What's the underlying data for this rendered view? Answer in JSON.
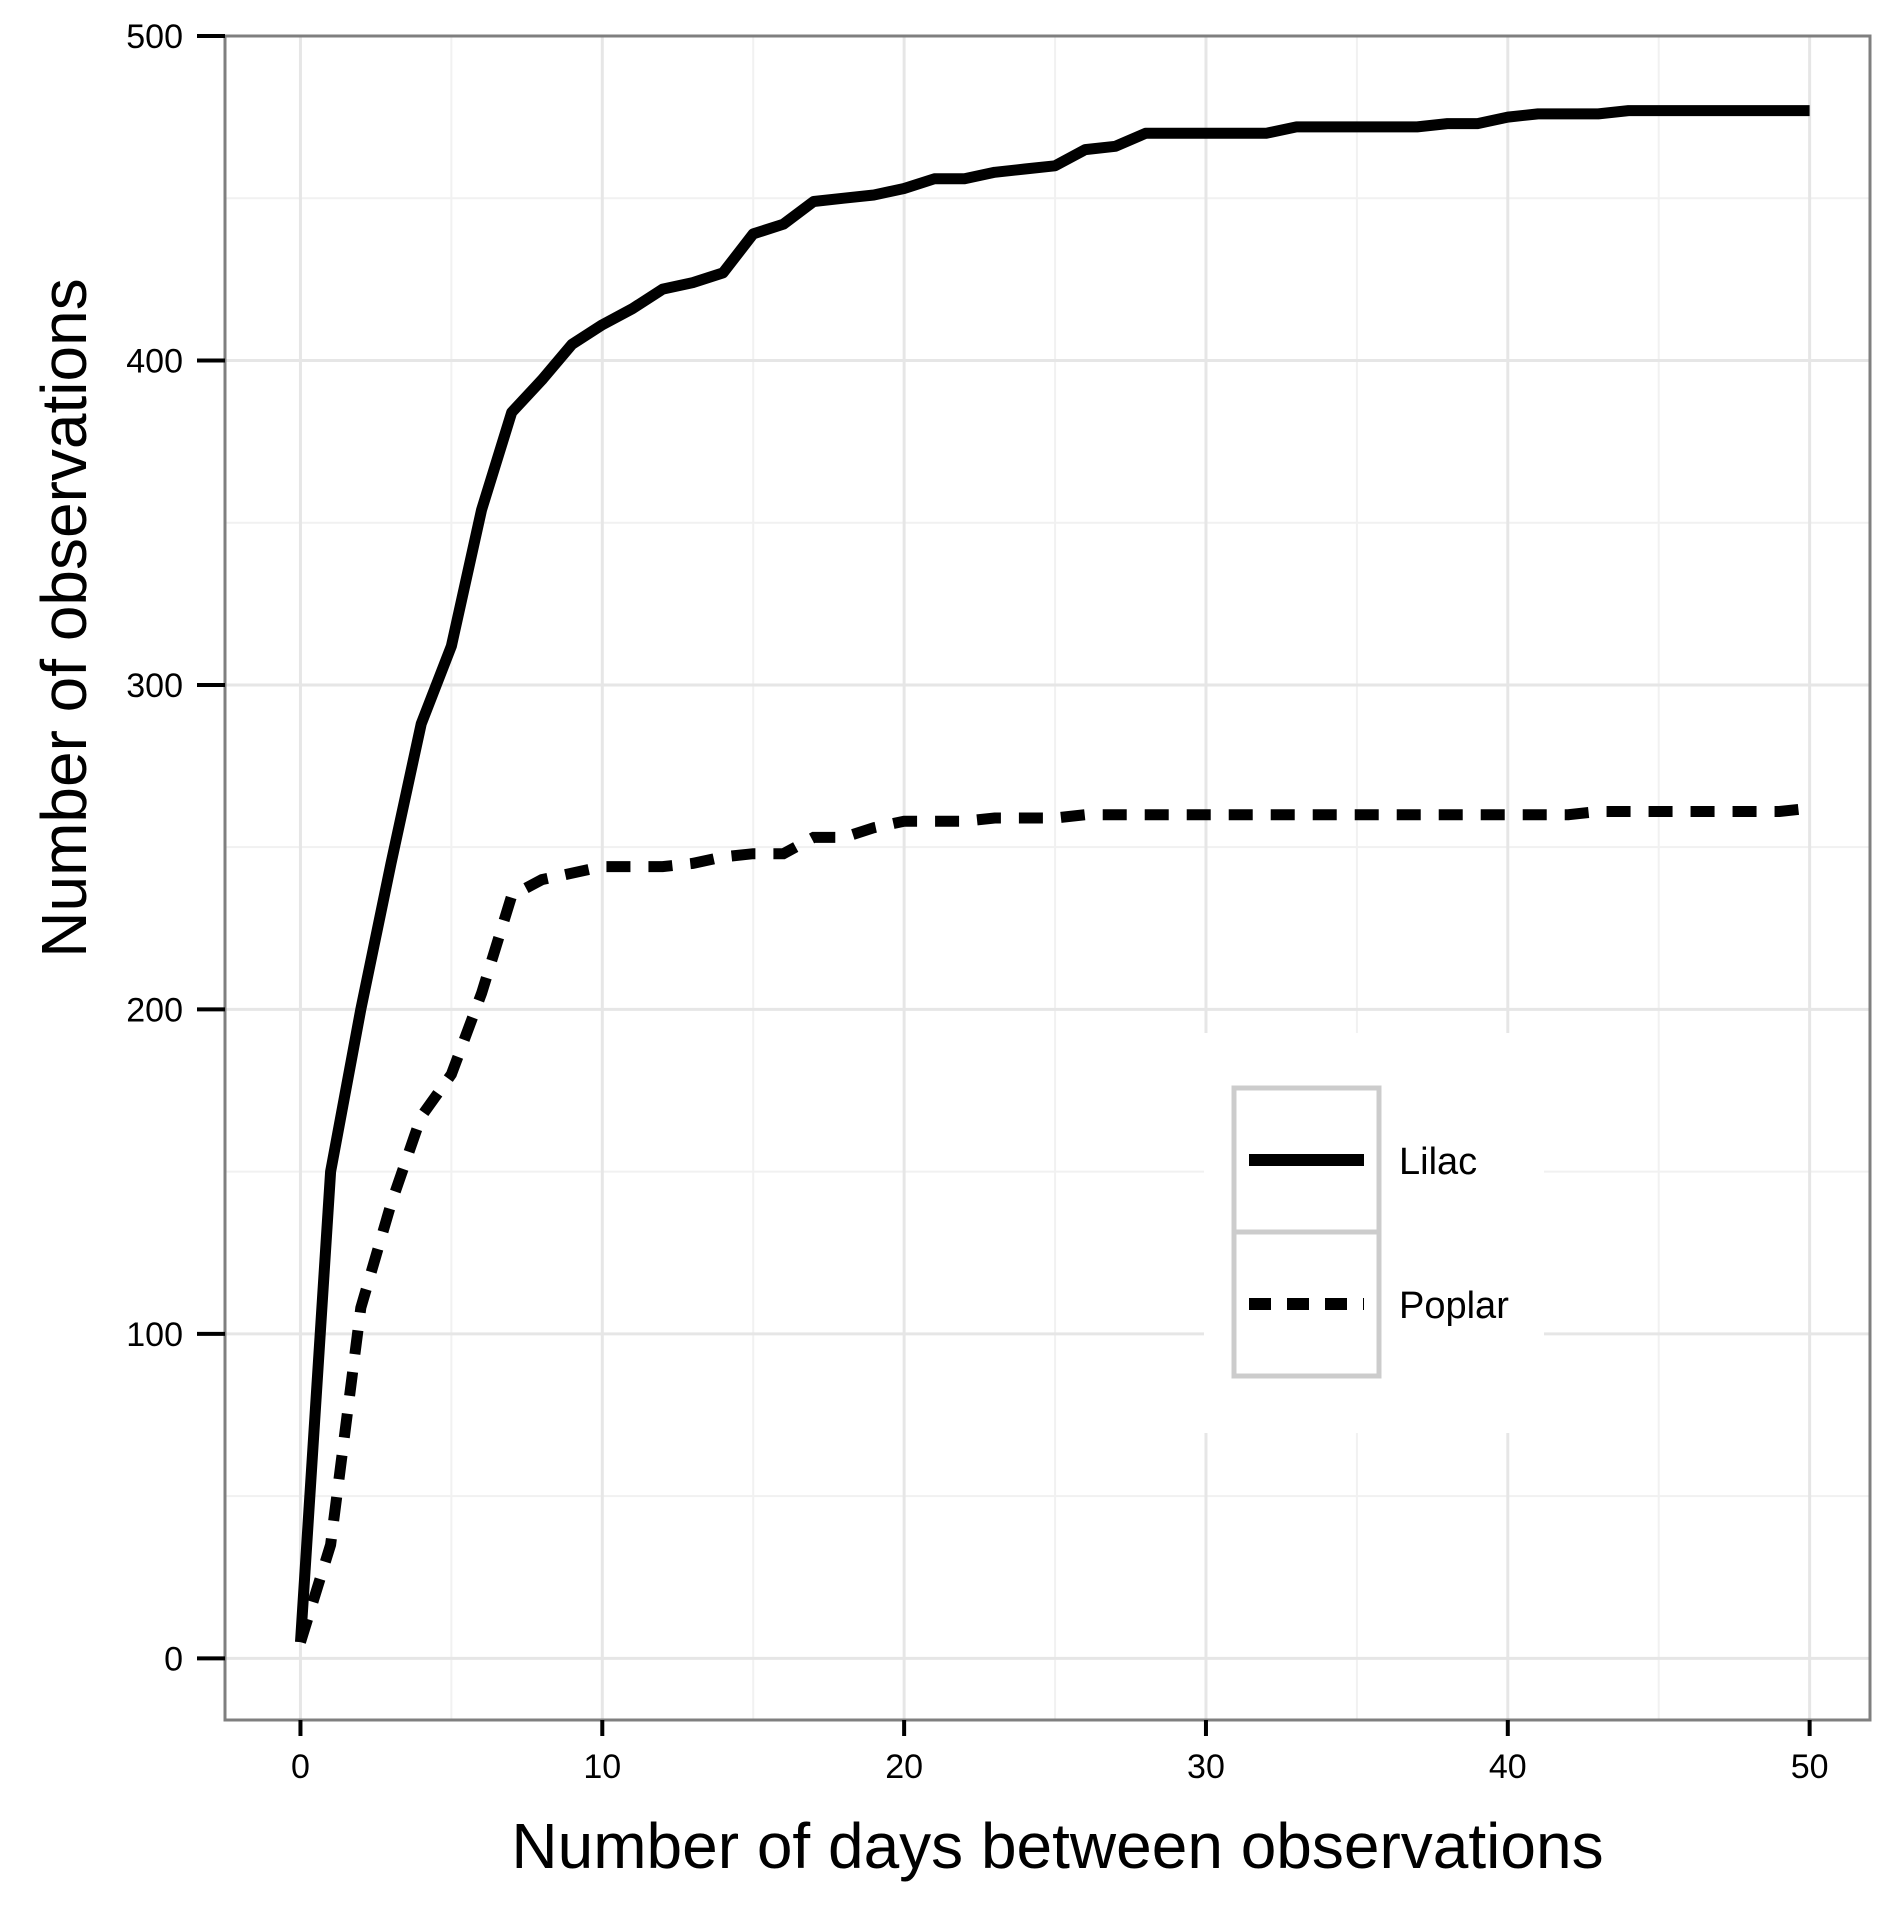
{
  "chart_data": {
    "type": "line",
    "title": "",
    "xlabel": "Number of days between observations",
    "ylabel": "Number of observations",
    "xlim": [
      -2.5,
      52
    ],
    "ylim": [
      -19,
      500
    ],
    "xticks": [
      0,
      10,
      20,
      30,
      40,
      50
    ],
    "yticks": [
      0,
      100,
      200,
      300,
      400,
      500
    ],
    "x_tick_labels": [
      "0",
      "10",
      "20",
      "30",
      "40",
      "50"
    ],
    "y_tick_labels": [
      "0",
      "100",
      "200",
      "300",
      "400",
      "500"
    ],
    "grid": true,
    "legend_position": "center-right",
    "colors": {
      "line": "#000000",
      "grid": "#e6e6e6",
      "frame": "#7f7f7f",
      "legend_border": "#cccccc"
    },
    "series": [
      {
        "name": "Lilac",
        "style": "solid",
        "x": [
          0,
          1,
          2,
          3,
          4,
          5,
          6,
          7,
          8,
          9,
          10,
          11,
          12,
          13,
          14,
          15,
          16,
          17,
          18,
          19,
          20,
          21,
          22,
          23,
          24,
          25,
          26,
          27,
          28,
          29,
          30,
          31,
          32,
          33,
          34,
          35,
          36,
          37,
          38,
          39,
          40,
          41,
          42,
          43,
          44,
          45,
          46,
          47,
          48,
          49,
          50
        ],
        "values": [
          5,
          150,
          200,
          245,
          288,
          312,
          354,
          384,
          394,
          405,
          411,
          416,
          422,
          424,
          427,
          439,
          442,
          449,
          450,
          451,
          453,
          456,
          456,
          458,
          459,
          460,
          465,
          466,
          470,
          470,
          470,
          470,
          470,
          472,
          472,
          472,
          472,
          472,
          473,
          473,
          475,
          476,
          476,
          476,
          477,
          477,
          477,
          477,
          477,
          477,
          477
        ]
      },
      {
        "name": "Poplar",
        "style": "dashed",
        "x": [
          0,
          1,
          2,
          3,
          4,
          5,
          6,
          7,
          8,
          9,
          10,
          11,
          12,
          13,
          14,
          15,
          16,
          17,
          18,
          19,
          20,
          21,
          22,
          23,
          24,
          25,
          26,
          27,
          28,
          29,
          30,
          31,
          32,
          33,
          34,
          35,
          36,
          37,
          38,
          39,
          40,
          41,
          42,
          43,
          44,
          45,
          46,
          47,
          48,
          49,
          50
        ],
        "values": [
          5,
          35,
          108,
          140,
          167,
          180,
          205,
          235,
          240,
          242,
          244,
          244,
          244,
          245,
          247,
          248,
          248,
          253,
          253,
          256,
          258,
          258,
          258,
          259,
          259,
          259,
          260,
          260,
          260,
          260,
          260,
          260,
          260,
          260,
          260,
          260,
          260,
          260,
          260,
          260,
          260,
          260,
          260,
          261,
          261,
          261,
          261,
          261,
          261,
          261,
          262
        ]
      }
    ]
  }
}
